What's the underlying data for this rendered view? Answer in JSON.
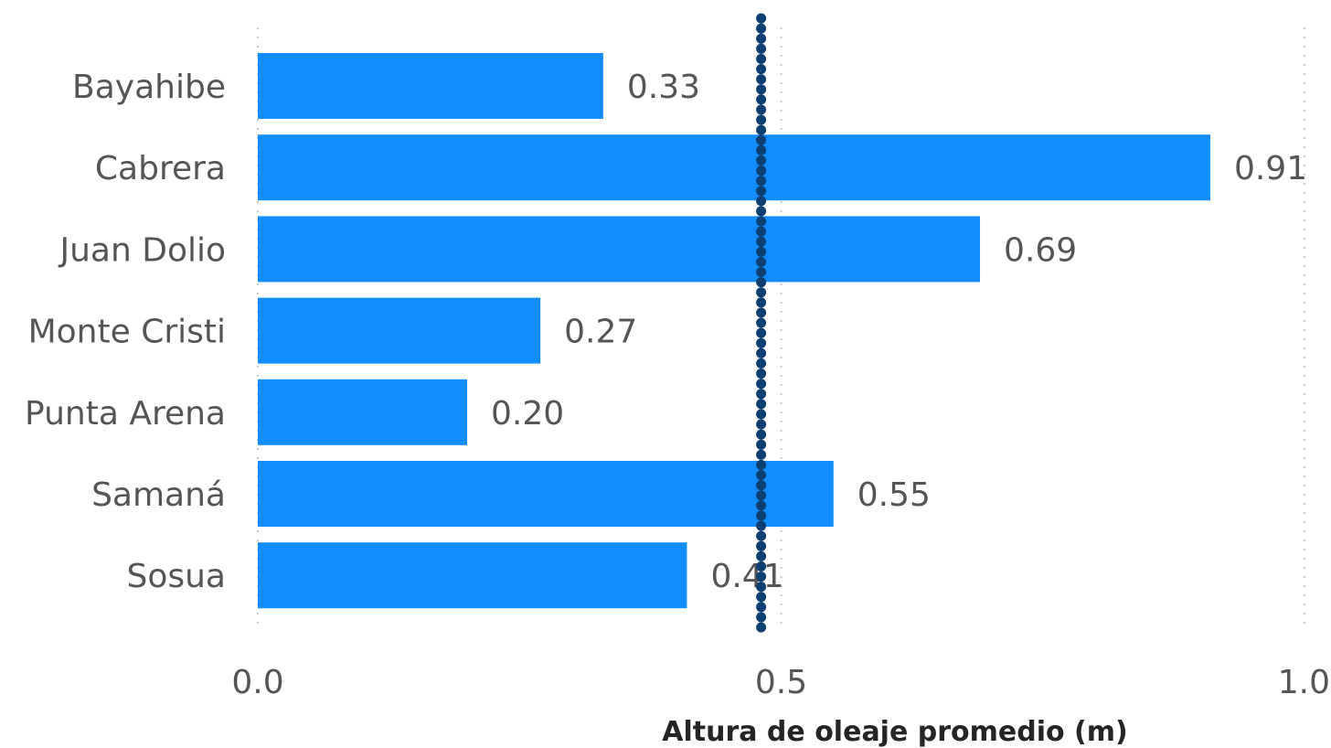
{
  "chart_data": {
    "type": "bar",
    "orientation": "horizontal",
    "categories": [
      "Bayahibe",
      "Cabrera",
      "Juan Dolio",
      "Monte Cristi",
      "Punta Arena",
      "Samaná",
      "Sosua"
    ],
    "values": [
      0.33,
      0.91,
      0.69,
      0.27,
      0.2,
      0.55,
      0.41
    ],
    "value_labels": [
      "0.33",
      "0.91",
      "0.69",
      "0.27",
      "0.20",
      "0.55",
      "0.41"
    ],
    "xlabel": "Altura de oleaje promedio (m)",
    "xlim": [
      0,
      1.0
    ],
    "xticks": [
      0.0,
      0.5,
      1.0
    ],
    "xtick_labels": [
      "0.0",
      "0.5",
      "1.0"
    ],
    "reference_line": {
      "value": 0.48,
      "style": "dotted"
    },
    "grid": true,
    "legend": "none",
    "colors": {
      "bar": "#118DFF",
      "reference_line": "#0E3F73",
      "grid": "#C8C8C8"
    }
  }
}
